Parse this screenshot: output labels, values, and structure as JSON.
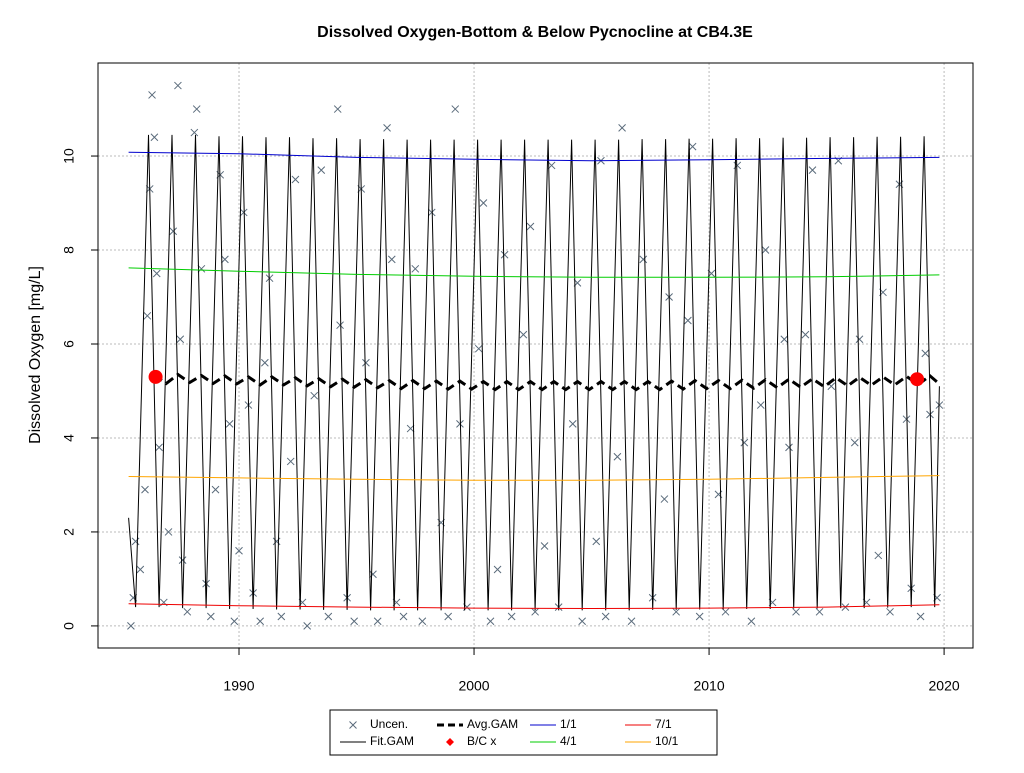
{
  "chart_data": {
    "type": "scatter",
    "title": "Dissolved Oxygen-Bottom & Below Pycnocline at CB4.3E",
    "y_label": "Dissolved Oxygen [mg/L]",
    "xlim": [
      1984,
      2021.23
    ],
    "ylim": [
      -0.47,
      11.98
    ],
    "xticks": [
      1990,
      2000,
      2010,
      2020
    ],
    "yticks": [
      0,
      2,
      4,
      6,
      8,
      10
    ],
    "grid": true,
    "legend": "bottom",
    "series": [
      {
        "name": "Uncen.",
        "kind": "scatter",
        "marker": "x",
        "color": "#5a6b7b",
        "x": [
          1985.4,
          1985.5,
          1985.6,
          1985.8,
          1986.0,
          1986.1,
          1986.2,
          1986.3,
          1986.4,
          1986.5,
          1986.6,
          1986.8,
          1987.0,
          1987.2,
          1987.4,
          1987.5,
          1987.6,
          1987.8,
          1988.1,
          1988.2,
          1988.4,
          1988.6,
          1988.8,
          1989.0,
          1989.2,
          1989.4,
          1989.6,
          1989.8,
          1990.0,
          1990.2,
          1990.4,
          1990.6,
          1990.9,
          1991.1,
          1991.3,
          1991.6,
          1991.8,
          1992.2,
          1992.4,
          1992.7,
          1992.9,
          1993.2,
          1993.5,
          1993.8,
          1994.2,
          1994.3,
          1994.6,
          1994.9,
          1995.2,
          1995.4,
          1995.7,
          1995.9,
          1996.3,
          1996.5,
          1996.7,
          1997.0,
          1997.3,
          1997.5,
          1997.8,
          1998.2,
          1998.6,
          1998.9,
          1999.2,
          1999.4,
          1999.7,
          2000.2,
          2000.4,
          2000.7,
          2001.0,
          2001.3,
          2001.6,
          2002.1,
          2002.4,
          2002.6,
          2003.0,
          2003.3,
          2003.6,
          2004.2,
          2004.4,
          2004.6,
          2005.2,
          2005.4,
          2005.6,
          2006.1,
          2006.3,
          2006.7,
          2007.2,
          2007.6,
          2008.1,
          2008.3,
          2008.6,
          2009.1,
          2009.3,
          2009.6,
          2010.1,
          2010.4,
          2010.7,
          2011.2,
          2011.5,
          2011.8,
          2012.2,
          2012.4,
          2012.7,
          2013.2,
          2013.4,
          2013.7,
          2014.1,
          2014.4,
          2014.7,
          2015.2,
          2015.5,
          2015.8,
          2016.2,
          2016.4,
          2016.7,
          2017.2,
          2017.4,
          2017.7,
          2018.1,
          2018.4,
          2018.6,
          2019.0,
          2019.2,
          2019.4,
          2019.7,
          2019.8
        ],
        "values": [
          0.0,
          0.6,
          1.8,
          1.2,
          2.9,
          6.6,
          9.3,
          11.3,
          10.4,
          7.5,
          3.8,
          0.5,
          2.0,
          8.4,
          11.5,
          6.1,
          1.4,
          0.3,
          10.5,
          11.0,
          7.6,
          0.9,
          0.2,
          2.9,
          9.6,
          7.8,
          4.3,
          0.1,
          1.6,
          8.8,
          4.7,
          0.7,
          0.1,
          5.6,
          7.4,
          1.8,
          0.2,
          3.5,
          9.5,
          0.5,
          0.0,
          4.9,
          9.7,
          0.2,
          11.0,
          6.4,
          0.6,
          0.1,
          9.3,
          5.6,
          1.1,
          0.1,
          10.6,
          7.8,
          0.5,
          0.2,
          4.2,
          7.6,
          0.1,
          8.8,
          2.2,
          0.2,
          11.0,
          4.3,
          0.4,
          5.9,
          9.0,
          0.1,
          1.2,
          7.9,
          0.2,
          6.2,
          8.5,
          0.3,
          1.7,
          9.8,
          0.4,
          4.3,
          7.3,
          0.1,
          1.8,
          9.9,
          0.2,
          3.6,
          10.6,
          0.1,
          7.8,
          0.6,
          2.7,
          7.0,
          0.3,
          6.5,
          10.2,
          0.2,
          7.5,
          2.8,
          0.3,
          9.8,
          3.9,
          0.1,
          4.7,
          8.0,
          0.5,
          6.1,
          3.8,
          0.3,
          6.2,
          9.7,
          0.3,
          5.1,
          9.9,
          0.4,
          3.9,
          6.1,
          0.5,
          1.5,
          7.1,
          0.3,
          9.4,
          4.4,
          0.8,
          0.2,
          5.8,
          4.5,
          0.6,
          4.7
        ]
      },
      {
        "name": "Fit.GAM",
        "kind": "line",
        "color": "#000000",
        "x": [
          1985.3,
          1985.6,
          1986.15,
          1986.6,
          1987.15,
          1987.6,
          1988.15,
          1988.6,
          1989.15,
          1989.6,
          1990.15,
          1990.6,
          1991.15,
          1991.6,
          1992.15,
          1992.6,
          1993.15,
          1993.6,
          1994.15,
          1994.6,
          1995.15,
          1995.6,
          1996.15,
          1996.6,
          1997.15,
          1997.6,
          1998.15,
          1998.6,
          1999.15,
          1999.6,
          2000.15,
          2000.6,
          2001.15,
          2001.6,
          2002.15,
          2002.6,
          2003.15,
          2003.6,
          2004.15,
          2004.6,
          2005.15,
          2005.6,
          2006.15,
          2006.6,
          2007.15,
          2007.6,
          2008.15,
          2008.6,
          2009.15,
          2009.6,
          2010.15,
          2010.6,
          2011.15,
          2011.6,
          2012.15,
          2012.6,
          2013.15,
          2013.6,
          2014.15,
          2014.6,
          2015.15,
          2015.6,
          2016.15,
          2016.6,
          2017.15,
          2017.6,
          2018.15,
          2018.6,
          2019.15,
          2019.6,
          2019.8
        ],
        "values": [
          2.3,
          0.4,
          10.45,
          0.4,
          10.45,
          0.38,
          10.45,
          0.38,
          10.42,
          0.36,
          10.42,
          0.36,
          10.4,
          0.35,
          10.4,
          0.35,
          10.38,
          0.34,
          10.38,
          0.34,
          10.36,
          0.33,
          10.36,
          0.33,
          10.35,
          0.33,
          10.35,
          0.33,
          10.35,
          0.33,
          10.35,
          0.33,
          10.35,
          0.33,
          10.35,
          0.33,
          10.35,
          0.33,
          10.35,
          0.33,
          10.35,
          0.33,
          10.35,
          0.33,
          10.36,
          0.34,
          10.36,
          0.34,
          10.37,
          0.35,
          10.37,
          0.35,
          10.38,
          0.36,
          10.38,
          0.36,
          10.39,
          0.37,
          10.39,
          0.37,
          10.4,
          0.38,
          10.4,
          0.38,
          10.41,
          0.39,
          10.41,
          0.4,
          10.42,
          0.4,
          5.1
        ]
      },
      {
        "name": "Avg.GAM",
        "kind": "line",
        "dash": true,
        "color": "#000000",
        "x": [
          1986.4,
          1986.9,
          1987.4,
          1987.9,
          1988.4,
          1988.9,
          1989.4,
          1989.9,
          1990.4,
          1990.9,
          1991.4,
          1991.9,
          1992.4,
          1992.9,
          1993.4,
          1993.9,
          1994.4,
          1994.9,
          1995.4,
          1995.9,
          1996.4,
          1996.9,
          1997.4,
          1997.9,
          1998.4,
          1998.9,
          1999.4,
          1999.9,
          2000.4,
          2000.9,
          2001.4,
          2001.9,
          2002.4,
          2002.9,
          2003.4,
          2003.9,
          2004.4,
          2004.9,
          2005.4,
          2005.9,
          2006.4,
          2006.9,
          2007.4,
          2007.9,
          2008.4,
          2008.9,
          2009.4,
          2009.9,
          2010.4,
          2010.9,
          2011.4,
          2011.9,
          2012.4,
          2012.9,
          2013.4,
          2013.9,
          2014.4,
          2014.9,
          2015.4,
          2015.9,
          2016.4,
          2016.9,
          2017.4,
          2017.9,
          2018.4,
          2018.9,
          2019.4,
          2019.8
        ],
        "values": [
          5.33,
          5.16,
          5.35,
          5.18,
          5.33,
          5.16,
          5.32,
          5.15,
          5.3,
          5.13,
          5.3,
          5.13,
          5.28,
          5.11,
          5.26,
          5.09,
          5.25,
          5.08,
          5.24,
          5.07,
          5.22,
          5.05,
          5.22,
          5.05,
          5.21,
          5.04,
          5.21,
          5.04,
          5.2,
          5.03,
          5.2,
          5.03,
          5.2,
          5.03,
          5.2,
          5.03,
          5.2,
          5.03,
          5.2,
          5.03,
          5.2,
          5.03,
          5.2,
          5.03,
          5.21,
          5.04,
          5.22,
          5.05,
          5.22,
          5.05,
          5.23,
          5.06,
          5.24,
          5.07,
          5.25,
          5.08,
          5.26,
          5.09,
          5.28,
          5.11,
          5.29,
          5.12,
          5.3,
          5.13,
          5.31,
          5.14,
          5.32,
          5.15
        ]
      },
      {
        "name": "B/C x",
        "kind": "scatter",
        "marker": "circle",
        "color": "#ff0000",
        "x": [
          1986.45,
          2018.85
        ],
        "values": [
          5.3,
          5.25
        ]
      },
      {
        "name": "1/1",
        "kind": "line",
        "color": "#0000cd",
        "x": [
          1985.3,
          1990,
          1995,
          2000,
          2005,
          2010,
          2015,
          2019.8
        ],
        "values": [
          10.08,
          10.05,
          9.97,
          9.93,
          9.9,
          9.92,
          9.95,
          9.97
        ]
      },
      {
        "name": "4/1",
        "kind": "line",
        "color": "#00cd00",
        "x": [
          1985.3,
          1990,
          1995,
          2000,
          2005,
          2010,
          2015,
          2019.8
        ],
        "values": [
          7.62,
          7.55,
          7.48,
          7.44,
          7.42,
          7.42,
          7.43,
          7.47
        ]
      },
      {
        "name": "7/1",
        "kind": "line",
        "color": "#ee0000",
        "x": [
          1985.3,
          1990,
          1995,
          2000,
          2005,
          2010,
          2015,
          2019.8
        ],
        "values": [
          0.47,
          0.43,
          0.4,
          0.38,
          0.37,
          0.38,
          0.4,
          0.45
        ]
      },
      {
        "name": "10/1",
        "kind": "line",
        "color": "#ffa500",
        "x": [
          1985.3,
          1990,
          1995,
          2000,
          2005,
          2010,
          2015,
          2019.8
        ],
        "values": [
          3.18,
          3.15,
          3.12,
          3.1,
          3.1,
          3.12,
          3.16,
          3.2
        ]
      }
    ]
  }
}
